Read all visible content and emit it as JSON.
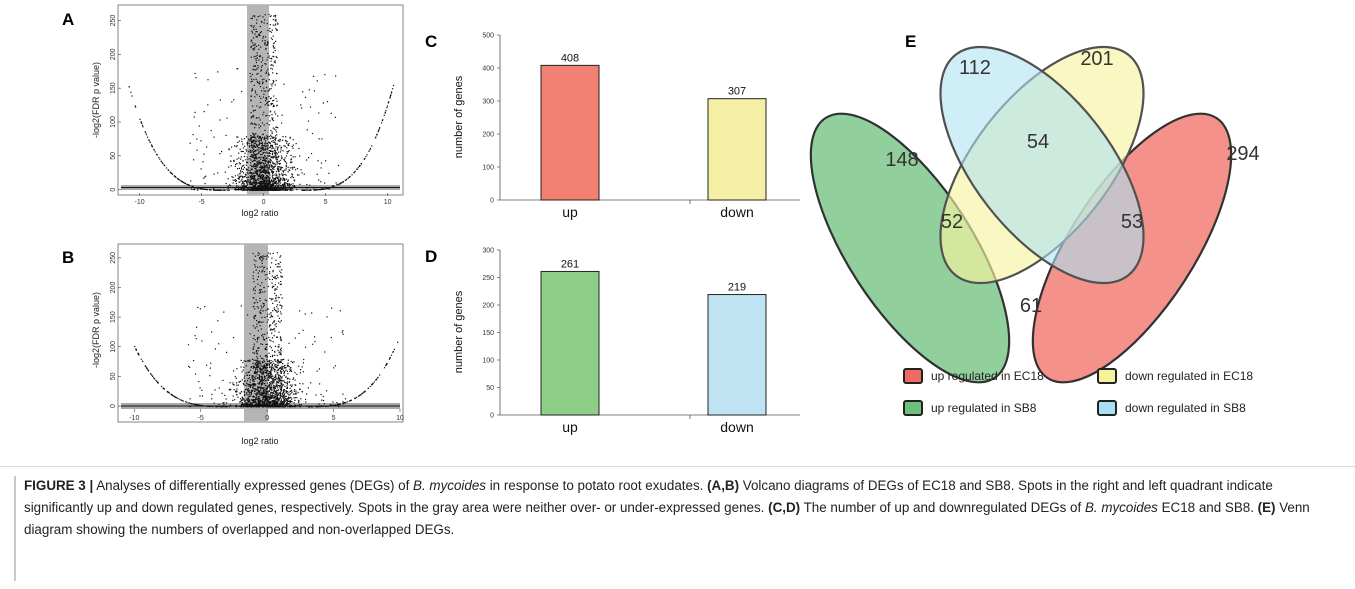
{
  "panels": {
    "A": "A",
    "B": "B",
    "C": "C",
    "D": "D",
    "E": "E"
  },
  "volcano": {
    "xlabel": "log2 ratio",
    "ylabel": "-log2(FDR p value)",
    "xticks": [
      "-10",
      "-5",
      "0",
      "5",
      "10"
    ],
    "yticks": [
      "0",
      "50",
      "100",
      "150",
      "200",
      "250"
    ]
  },
  "chart_data": [
    {
      "type": "scatter",
      "id": "A",
      "xlabel": "log2 ratio",
      "ylabel": "-log2(FDR p value)",
      "xlim": [
        -11.5,
        11
      ],
      "ylim": [
        -5,
        270
      ],
      "gray_band_x": [
        -1,
        1
      ],
      "note": ""
    },
    {
      "type": "scatter",
      "id": "B",
      "xlabel": "log2 ratio",
      "ylabel": "-log2(FDR p value)",
      "xlim": [
        -11,
        10
      ],
      "ylim": [
        -5,
        270
      ],
      "gray_band_x": [
        -1,
        1
      ]
    },
    {
      "type": "bar",
      "id": "C",
      "categories": [
        "up",
        "down"
      ],
      "values": [
        408,
        307
      ],
      "colors": [
        "#f28173",
        "#f5f0a5"
      ],
      "ylabel": "number of genes",
      "ylim": [
        0,
        500
      ],
      "yticks": [
        "0",
        "100",
        "200",
        "300",
        "400",
        "500"
      ]
    },
    {
      "type": "bar",
      "id": "D",
      "categories": [
        "up",
        "down"
      ],
      "values": [
        261,
        219
      ],
      "colors": [
        "#8fce86",
        "#bfe3f3"
      ],
      "ylabel": "number of genes",
      "ylim": [
        0,
        300
      ],
      "yticks": [
        "0",
        "50",
        "100",
        "150",
        "200",
        "250",
        "300"
      ]
    }
  ],
  "venn": {
    "regions": {
      "blue_only": "112",
      "yellow_only": "201",
      "green_only": "148",
      "red_only": "294",
      "blue_yellow": "54",
      "green_yellow": "52",
      "blue_red": "53",
      "green_red": "61"
    },
    "colors": {
      "red": "#ef6b61",
      "yellow": "#f6f29a",
      "green": "#6cc07a",
      "blue": "#a8dff2"
    },
    "legend": [
      {
        "label": "up regulated in EC18",
        "color": "#ef6b61"
      },
      {
        "label": "down regulated in EC18",
        "color": "#f6f29a"
      },
      {
        "label": "up regulated in SB8",
        "color": "#6cc07a"
      },
      {
        "label": "down regulated in SB8",
        "color": "#a8dff2"
      }
    ]
  },
  "caption": {
    "fig": "FIGURE 3 |",
    "t1": " Analyses of differentially expressed genes (DEGs) of ",
    "species1": "B. mycoides",
    "t2": " in response to potato root exudates. ",
    "ab": "(A,B)",
    "t3": " Volcano diagrams of DEGs of EC18 and SB8. Spots in the right and left quadrant indicate significantly up and down regulated genes, respectively. Spots in the gray area were neither over- or under-expressed genes. ",
    "cd": "(C,D)",
    "t4": " The number of up and downregulated DEGs of ",
    "species2": "B. mycoides",
    "t5": " EC18 and SB8. ",
    "e": "(E)",
    "t6": " Venn diagram showing the numbers of overlapped and non-overlapped DEGs."
  }
}
